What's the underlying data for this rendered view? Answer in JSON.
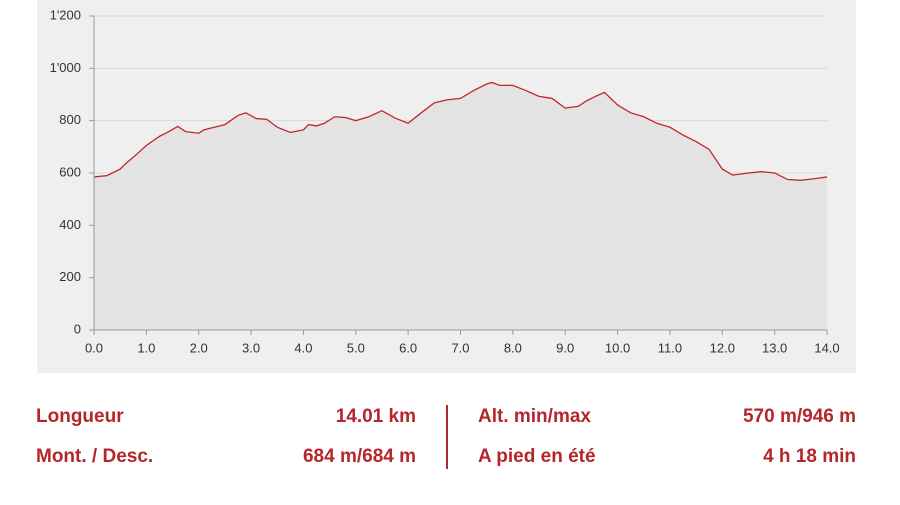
{
  "chart_data": {
    "type": "area",
    "x": [
      0,
      0.25,
      0.5,
      0.6,
      0.75,
      1.0,
      1.25,
      1.4,
      1.6,
      1.75,
      2.0,
      2.1,
      2.5,
      2.75,
      2.9,
      3.1,
      3.3,
      3.5,
      3.75,
      4.0,
      4.1,
      4.25,
      4.4,
      4.6,
      4.8,
      5.0,
      5.25,
      5.5,
      5.75,
      6.0,
      6.25,
      6.5,
      6.75,
      7.0,
      7.25,
      7.5,
      7.6,
      7.75,
      8.0,
      8.25,
      8.5,
      8.75,
      9.0,
      9.25,
      9.4,
      9.6,
      9.75,
      10.0,
      10.25,
      10.5,
      10.75,
      11.0,
      11.25,
      11.5,
      11.75,
      12.0,
      12.2,
      12.5,
      12.75,
      13.0,
      13.25,
      13.5,
      13.75,
      14.0
    ],
    "values": [
      585,
      590,
      615,
      635,
      660,
      705,
      740,
      755,
      778,
      758,
      752,
      765,
      785,
      820,
      830,
      808,
      805,
      775,
      755,
      765,
      785,
      780,
      790,
      815,
      812,
      800,
      815,
      838,
      810,
      790,
      830,
      868,
      880,
      885,
      915,
      940,
      946,
      935,
      935,
      915,
      893,
      885,
      848,
      855,
      875,
      895,
      908,
      860,
      830,
      815,
      790,
      775,
      745,
      720,
      690,
      615,
      592,
      600,
      605,
      600,
      575,
      572,
      578,
      585
    ],
    "color": "#c0272d",
    "fill": "#e3e3e3",
    "grid": true,
    "xlim": [
      0,
      14
    ],
    "ylim": [
      0,
      1200
    ],
    "xticks": [
      {
        "value": 0,
        "label": "0.0"
      },
      {
        "value": 1,
        "label": "1.0"
      },
      {
        "value": 2,
        "label": "2.0"
      },
      {
        "value": 3,
        "label": "3.0"
      },
      {
        "value": 4,
        "label": "4.0"
      },
      {
        "value": 5,
        "label": "5.0"
      },
      {
        "value": 6,
        "label": "6.0"
      },
      {
        "value": 7,
        "label": "7.0"
      },
      {
        "value": 8,
        "label": "8.0"
      },
      {
        "value": 9,
        "label": "9.0"
      },
      {
        "value": 10,
        "label": "10.0"
      },
      {
        "value": 11,
        "label": "11.0"
      },
      {
        "value": 12,
        "label": "12.0"
      },
      {
        "value": 13,
        "label": "13.0"
      },
      {
        "value": 14,
        "label": "14.0"
      }
    ],
    "yticks": [
      0,
      200,
      400,
      600,
      800,
      {
        "value": 1000,
        "label": "1'000"
      },
      {
        "value": 1200,
        "label": "1'200"
      }
    ]
  },
  "stats": [
    {
      "label": "Longueur",
      "value": "14.01 km"
    },
    {
      "label": "Mont. / Desc.",
      "value": "684 m/684 m"
    },
    {
      "label": "Alt. min/max",
      "value": "570 m/946 m"
    },
    {
      "label": "A pied en été",
      "value": "4 h 18 min"
    }
  ]
}
